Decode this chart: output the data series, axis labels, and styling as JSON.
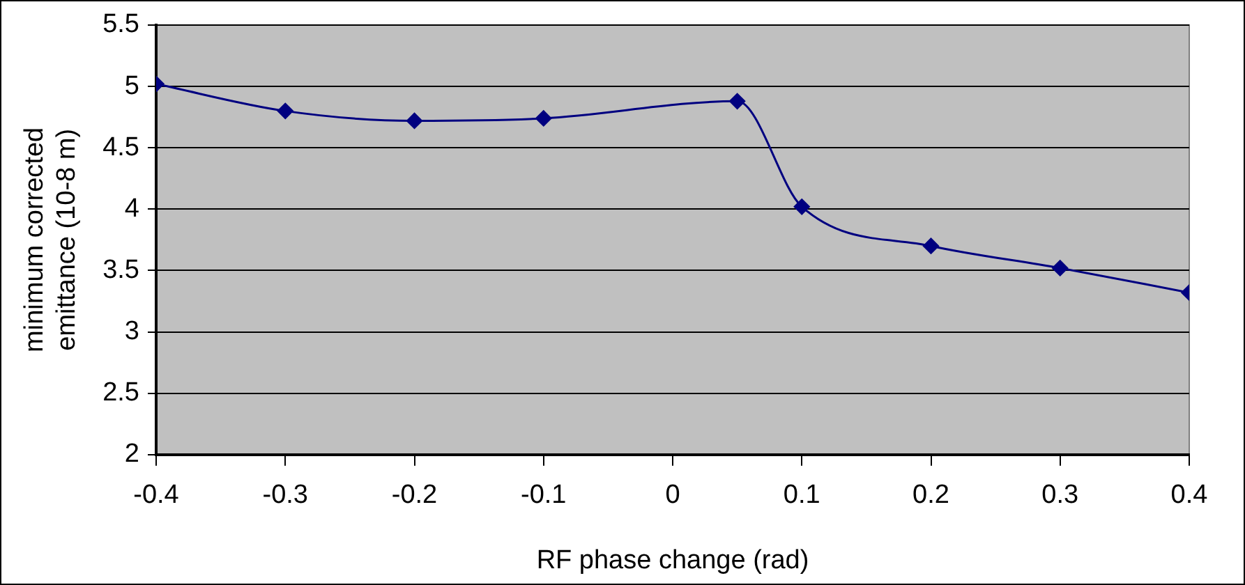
{
  "chart_data": {
    "type": "line",
    "xlabel": "RF phase change (rad)",
    "ylabel": "minimum corrected emittance (10-8 m)",
    "x": [
      -0.4,
      -0.3,
      -0.2,
      -0.1,
      0.05,
      0.1,
      0.2,
      0.3,
      0.4
    ],
    "series": [
      {
        "color": "#000080",
        "values": [
          5.02,
          4.8,
          4.72,
          4.74,
          4.88,
          4.02,
          3.7,
          3.52,
          3.32
        ]
      }
    ],
    "xlim": [
      -0.4,
      0.4
    ],
    "xticks": [
      -0.4,
      -0.3,
      -0.2,
      -0.1,
      0,
      0.1,
      0.2,
      0.3,
      0.4
    ],
    "ylim": [
      2,
      5.5
    ],
    "yticks": [
      2,
      2.5,
      3,
      3.5,
      4,
      4.5,
      5,
      5.5
    ],
    "grid": "y",
    "legend": false,
    "marker": "diamond",
    "line_style": "solid"
  }
}
